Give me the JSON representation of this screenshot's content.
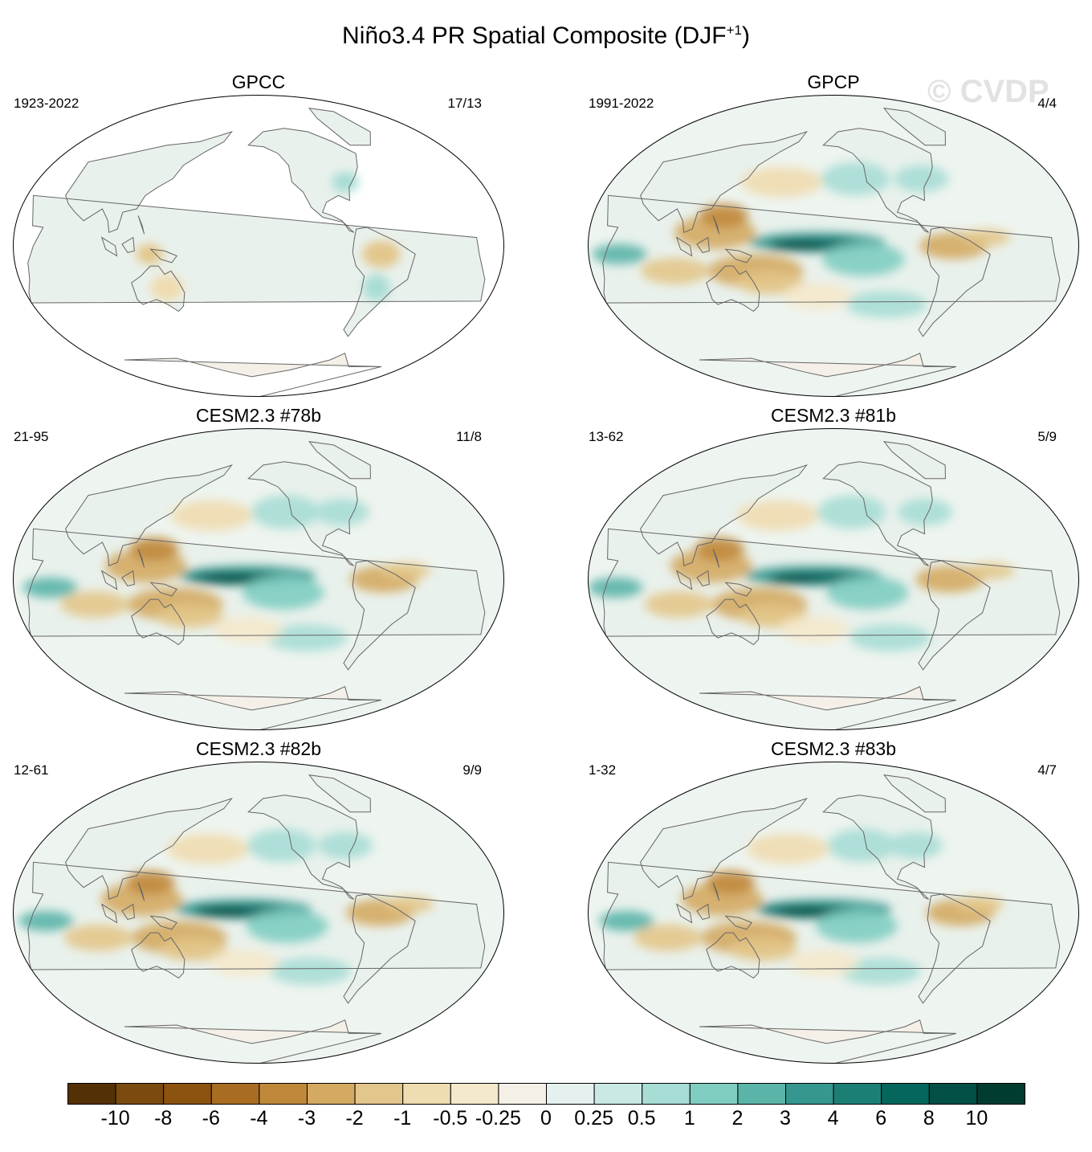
{
  "figure": {
    "title": "Niño3.4 PR Spatial Composite (DJF",
    "title_superscript": "+1",
    "title_suffix": ")",
    "watermark": "© CVDP"
  },
  "panels": [
    {
      "title": "GPCC",
      "years": "1923-2022",
      "counts": "17/13",
      "ocean_data": false
    },
    {
      "title": "GPCP",
      "years": "1991-2022",
      "counts": "4/4",
      "ocean_data": true
    },
    {
      "title": "CESM2.3 #78b",
      "years": "21-95",
      "counts": "11/8",
      "ocean_data": true
    },
    {
      "title": "CESM2.3 #81b",
      "years": "13-62",
      "counts": "5/9",
      "ocean_data": true
    },
    {
      "title": "CESM2.3 #82b",
      "years": "12-61",
      "counts": "9/9",
      "ocean_data": true
    },
    {
      "title": "CESM2.3 #83b",
      "years": "1-32",
      "counts": "4/7",
      "ocean_data": true
    }
  ],
  "colorbar": {
    "labels": [
      "-10",
      "-8",
      "-6",
      "-4",
      "-3",
      "-2",
      "-1",
      "-0.5",
      "-0.25",
      "0",
      "0.25",
      "0.5",
      "1",
      "2",
      "3",
      "4",
      "6",
      "8",
      "10"
    ],
    "colors": [
      "#543005",
      "#7a4a0e",
      "#8c5210",
      "#a86d22",
      "#c0883a",
      "#d4aa62",
      "#e3c68b",
      "#efdcb0",
      "#f5e9cc",
      "#f4f0e8",
      "#e4f1ef",
      "#cae9e4",
      "#a7ddd5",
      "#80cdc1",
      "#5ab4a8",
      "#35978f",
      "#1c7f75",
      "#05665d",
      "#024f46",
      "#003c30"
    ]
  }
}
